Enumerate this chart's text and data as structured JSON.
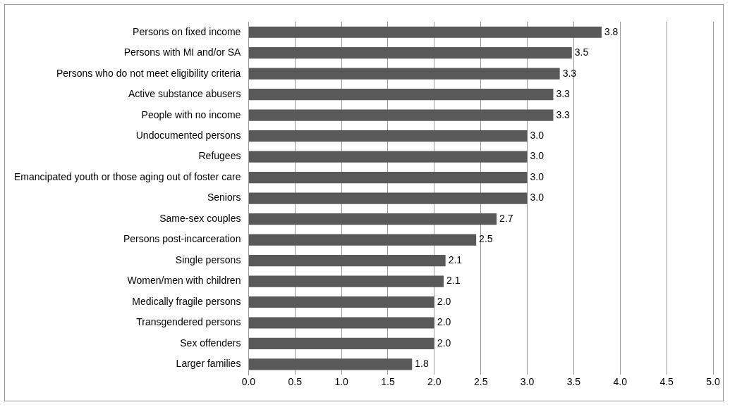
{
  "chart_data": {
    "type": "bar",
    "orientation": "horizontal",
    "categories": [
      "Persons on fixed income",
      "Persons with MI and/or SA",
      "Persons who do not meet eligibility criteria",
      "Active substance abusers",
      "People with no income",
      "Undocumented persons",
      "Refugees",
      "Emancipated youth or those aging out of foster care",
      "Seniors",
      "Same-sex couples",
      "Persons post-incarceration",
      "Single persons",
      "Women/men with children",
      "Medically fragile persons",
      "Transgendered persons",
      "Sex offenders",
      "Larger families"
    ],
    "values": [
      3.8,
      3.48,
      3.35,
      3.28,
      3.28,
      3.0,
      3.0,
      3.0,
      3.0,
      2.67,
      2.45,
      2.12,
      2.1,
      2.0,
      2.0,
      2.0,
      1.76
    ],
    "value_labels": [
      "3.8",
      "3.5",
      "3.3",
      "3.3",
      "3.3",
      "3.0",
      "3.0",
      "3.0",
      "3.0",
      "2.7",
      "2.5",
      "2.1",
      "2.1",
      "2.0",
      "2.0",
      "2.0",
      "1.8"
    ],
    "color": "#595959",
    "xlim": [
      0,
      5
    ],
    "xticks": [
      {
        "value": 0,
        "label": "0.0"
      },
      {
        "value": 0.5,
        "label": "0.5"
      },
      {
        "value": 1,
        "label": "1.0"
      },
      {
        "value": 1.5,
        "label": "1.5"
      },
      {
        "value": 2,
        "label": "2.0"
      },
      {
        "value": 2.5,
        "label": "2.5"
      },
      {
        "value": 3,
        "label": "3.0"
      },
      {
        "value": 3.5,
        "label": "3.5"
      },
      {
        "value": 4,
        "label": "4.0"
      },
      {
        "value": 4.5,
        "label": "4.5"
      },
      {
        "value": 5,
        "label": "5.0"
      }
    ],
    "grid": "x"
  }
}
